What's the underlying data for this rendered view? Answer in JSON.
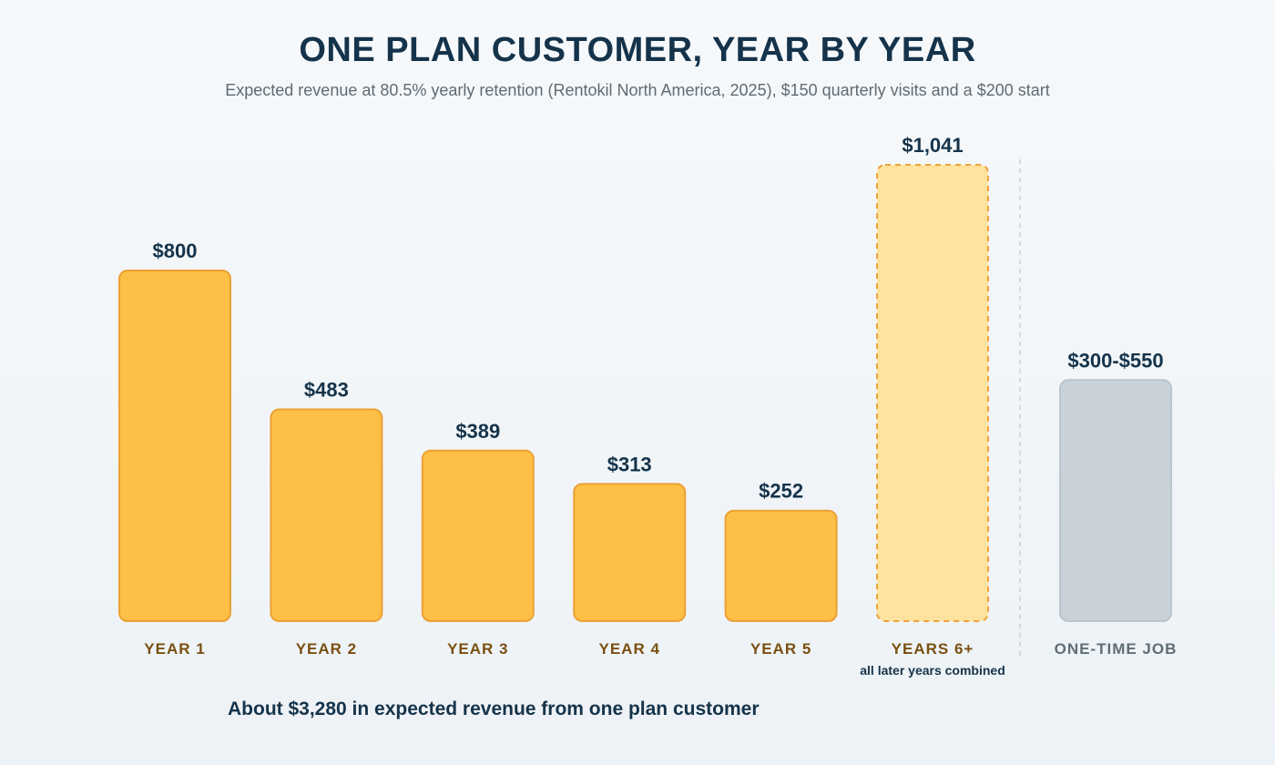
{
  "header": {
    "title": "ONE PLAN CUSTOMER, YEAR BY YEAR",
    "subtitle": "Expected revenue at 80.5% yearly retention (Rentokil North America, 2025), $150 quarterly visits and a $200 start"
  },
  "colors": {
    "bar_fill": "#fdbf45",
    "bar_stroke": "#eba135",
    "combined_fill": "#fee39e",
    "combined_stroke": "#eea33a",
    "onetime_fill": "#c9d2d8",
    "onetime_stroke": "#b8c6cc",
    "value_label": "#15334a",
    "category_label": "#7a4f10",
    "onetime_label": "#5f6e78",
    "divider": "#c9cfd4"
  },
  "chart_data": {
    "type": "bar",
    "ylim": [
      0,
      1041
    ],
    "grid": false,
    "categories": [
      "YEAR 1",
      "YEAR 2",
      "YEAR 3",
      "YEAR 4",
      "YEAR 5",
      "YEARS 6+",
      "ONE-TIME JOB"
    ],
    "values": [
      800,
      483,
      389,
      313,
      252,
      1041,
      550
    ],
    "value_labels": [
      "$800",
      "$483",
      "$389",
      "$313",
      "$252",
      "$1,041",
      "$300-$550"
    ],
    "styles": [
      "plan",
      "plan",
      "plan",
      "plan",
      "plan",
      "combined",
      "onetime"
    ],
    "sublabels": [
      "",
      "",
      "",
      "",
      "",
      "all later years combined",
      ""
    ]
  },
  "footnote": "About $3,280 in expected revenue from one plan customer"
}
